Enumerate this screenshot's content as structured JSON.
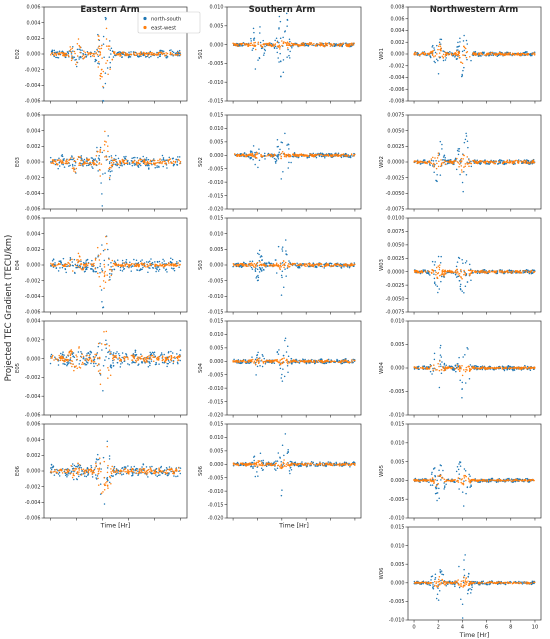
{
  "figure": {
    "ylabel": "Projected TEC Gradient (TECU/km)",
    "xlabel": "Time [Hr]"
  },
  "legend": {
    "entries": [
      "north-south",
      "east-west"
    ]
  },
  "colors": {
    "north_south": "#1f77b4",
    "east_west": "#ff7f0e",
    "axes": "#333333"
  },
  "columns": [
    {
      "title": "Eastern Arm"
    },
    {
      "title": "Southern Arm"
    },
    {
      "title": "Northwestern Arm"
    }
  ],
  "chart_data": [
    {
      "type": "scatter",
      "column": "Eastern Arm",
      "station": "E02",
      "xlim": [
        -0.5,
        10.5
      ],
      "ylim": [
        -0.006,
        0.006
      ],
      "yticks": [
        "0.006",
        "0.004",
        "0.002",
        "0.000",
        "-0.002",
        "-0.004",
        "-0.006"
      ],
      "ytick_values": [
        0.006,
        0.004,
        0.002,
        0.0,
        -0.002,
        -0.004,
        -0.006
      ],
      "x_ticklabels_shown": false,
      "xlabel": "",
      "legend": "top-right",
      "series": [
        {
          "name": "north-south",
          "burst1_amp": 0.0015,
          "burst2_amp": 0.005,
          "baseline_amp": 0.0004
        },
        {
          "name": "east-west",
          "burst1_amp": 0.0018,
          "burst2_amp": 0.0045,
          "baseline_amp": 0.0002
        }
      ]
    },
    {
      "type": "scatter",
      "column": "Eastern Arm",
      "station": "E03",
      "xlim": [
        -0.5,
        10.5
      ],
      "ylim": [
        -0.006,
        0.006
      ],
      "yticks": [
        "0.006",
        "0.004",
        "0.002",
        "0.000",
        "-0.002",
        "-0.004",
        "-0.006"
      ],
      "ytick_values": [
        0.006,
        0.004,
        0.002,
        0.0,
        -0.002,
        -0.004,
        -0.006
      ],
      "x_ticklabels_shown": false,
      "xlabel": "",
      "series": [
        {
          "name": "north-south",
          "burst1_amp": 0.0013,
          "burst2_amp": 0.005,
          "baseline_amp": 0.0007
        },
        {
          "name": "east-west",
          "burst1_amp": 0.0012,
          "burst2_amp": 0.0035,
          "baseline_amp": 0.0003
        }
      ]
    },
    {
      "type": "scatter",
      "column": "Eastern Arm",
      "station": "E04",
      "xlim": [
        -0.5,
        10.5
      ],
      "ylim": [
        -0.006,
        0.006
      ],
      "yticks": [
        "0.006",
        "0.004",
        "0.002",
        "0.000",
        "-0.002",
        "-0.004",
        "-0.006"
      ],
      "ytick_values": [
        0.006,
        0.004,
        0.002,
        0.0,
        -0.002,
        -0.004,
        -0.006
      ],
      "x_ticklabels_shown": false,
      "xlabel": "",
      "series": [
        {
          "name": "north-south",
          "burst1_amp": 0.0012,
          "burst2_amp": 0.0045,
          "baseline_amp": 0.0007
        },
        {
          "name": "east-west",
          "burst1_amp": 0.0014,
          "burst2_amp": 0.0045,
          "baseline_amp": 0.0002
        }
      ]
    },
    {
      "type": "scatter",
      "column": "Eastern Arm",
      "station": "E05",
      "xlim": [
        -0.5,
        10.5
      ],
      "ylim": [
        -0.006,
        0.004
      ],
      "yticks": [
        "0.004",
        "0.002",
        "0.000",
        "-0.002",
        "-0.004",
        "-0.006"
      ],
      "ytick_values": [
        0.004,
        0.002,
        0.0,
        -0.002,
        -0.004,
        -0.006
      ],
      "x_ticklabels_shown": false,
      "xlabel": "",
      "series": [
        {
          "name": "north-south",
          "burst1_amp": 0.0012,
          "burst2_amp": 0.0035,
          "baseline_amp": 0.0007
        },
        {
          "name": "east-west",
          "burst1_amp": 0.0018,
          "burst2_amp": 0.004,
          "baseline_amp": 0.0003
        }
      ]
    },
    {
      "type": "scatter",
      "column": "Eastern Arm",
      "station": "E06",
      "xlim": [
        -0.5,
        10.5
      ],
      "ylim": [
        -0.006,
        0.006
      ],
      "yticks": [
        "0.006",
        "0.004",
        "0.002",
        "0.000",
        "-0.002",
        "-0.004",
        "-0.006"
      ],
      "ytick_values": [
        0.006,
        0.004,
        0.002,
        0.0,
        -0.002,
        -0.004,
        -0.006
      ],
      "x_ticklabels_shown": false,
      "xlabel": "Time [Hr]",
      "series": [
        {
          "name": "north-south",
          "burst1_amp": 0.0013,
          "burst2_amp": 0.0045,
          "baseline_amp": 0.0007
        },
        {
          "name": "east-west",
          "burst1_amp": 0.0012,
          "burst2_amp": 0.004,
          "baseline_amp": 0.0003
        }
      ]
    },
    {
      "type": "scatter",
      "column": "Southern Arm",
      "station": "S01",
      "xlim": [
        -0.5,
        10.5
      ],
      "ylim": [
        -0.015,
        0.01
      ],
      "yticks": [
        "0.010",
        "0.005",
        "0.000",
        "-0.005",
        "-0.010",
        "-0.015"
      ],
      "ytick_values": [
        0.01,
        0.005,
        0.0,
        -0.005,
        -0.01,
        -0.015
      ],
      "x_ticklabels_shown": false,
      "xlabel": "",
      "series": [
        {
          "name": "north-south",
          "burst1_amp": 0.007,
          "burst2_amp": 0.011,
          "baseline_amp": 0.0004
        },
        {
          "name": "east-west",
          "burst1_amp": 0.0012,
          "burst2_amp": 0.0015,
          "baseline_amp": 0.0004
        }
      ]
    },
    {
      "type": "scatter",
      "column": "Southern Arm",
      "station": "S02",
      "xlim": [
        -0.5,
        10.5
      ],
      "ylim": [
        -0.02,
        0.015
      ],
      "yticks": [
        "0.015",
        "0.010",
        "0.005",
        "0.000",
        "-0.005",
        "-0.010",
        "-0.015",
        "-0.020"
      ],
      "ytick_values": [
        0.015,
        0.01,
        0.005,
        0.0,
        -0.005,
        -0.01,
        -0.015,
        -0.02
      ],
      "x_ticklabels_shown": false,
      "xlabel": "",
      "series": [
        {
          "name": "north-south",
          "burst1_amp": 0.005,
          "burst2_amp": 0.012,
          "baseline_amp": 0.0007
        },
        {
          "name": "east-west",
          "burst1_amp": 0.0012,
          "burst2_amp": 0.0015,
          "baseline_amp": 0.0004
        }
      ]
    },
    {
      "type": "scatter",
      "column": "Southern Arm",
      "station": "S03",
      "xlim": [
        -0.5,
        10.5
      ],
      "ylim": [
        -0.015,
        0.015
      ],
      "yticks": [
        "0.015",
        "0.010",
        "0.005",
        "0.000",
        "-0.005",
        "-0.010",
        "-0.015"
      ],
      "ytick_values": [
        0.015,
        0.01,
        0.005,
        0.0,
        -0.005,
        -0.01,
        -0.015
      ],
      "x_ticklabels_shown": false,
      "xlabel": "",
      "series": [
        {
          "name": "north-south",
          "burst1_amp": 0.005,
          "burst2_amp": 0.01,
          "baseline_amp": 0.0007
        },
        {
          "name": "east-west",
          "burst1_amp": 0.0012,
          "burst2_amp": 0.0015,
          "baseline_amp": 0.0004
        }
      ]
    },
    {
      "type": "scatter",
      "column": "Southern Arm",
      "station": "S04",
      "xlim": [
        -0.5,
        10.5
      ],
      "ylim": [
        -0.02,
        0.015
      ],
      "yticks": [
        "0.015",
        "0.010",
        "0.005",
        "0.000",
        "-0.005",
        "-0.010",
        "-0.015",
        "-0.020"
      ],
      "ytick_values": [
        0.015,
        0.01,
        0.005,
        0.0,
        -0.005,
        -0.01,
        -0.015,
        -0.02
      ],
      "x_ticklabels_shown": false,
      "xlabel": "",
      "series": [
        {
          "name": "north-south",
          "burst1_amp": 0.005,
          "burst2_amp": 0.01,
          "baseline_amp": 0.0007
        },
        {
          "name": "east-west",
          "burst1_amp": 0.0012,
          "burst2_amp": 0.0015,
          "baseline_amp": 0.0004
        }
      ]
    },
    {
      "type": "scatter",
      "column": "Southern Arm",
      "station": "S06",
      "xlim": [
        -0.5,
        10.5
      ],
      "ylim": [
        -0.02,
        0.015
      ],
      "yticks": [
        "0.015",
        "0.010",
        "0.005",
        "0.000",
        "-0.005",
        "-0.010",
        "-0.015",
        "-0.020"
      ],
      "ytick_values": [
        0.015,
        0.01,
        0.005,
        0.0,
        -0.005,
        -0.01,
        -0.015,
        -0.02
      ],
      "x_ticklabels_shown": false,
      "xlabel": "Time [Hr]",
      "series": [
        {
          "name": "north-south",
          "burst1_amp": 0.005,
          "burst2_amp": 0.012,
          "baseline_amp": 0.0007
        },
        {
          "name": "east-west",
          "burst1_amp": 0.0012,
          "burst2_amp": 0.0015,
          "baseline_amp": 0.0004
        }
      ]
    },
    {
      "type": "scatter",
      "column": "Northwestern Arm",
      "station": "W01",
      "xlim": [
        -0.5,
        10.5
      ],
      "ylim": [
        -0.008,
        0.008
      ],
      "yticks": [
        "0.008",
        "0.006",
        "0.004",
        "0.002",
        "0.000",
        "-0.002",
        "-0.004",
        "-0.006",
        "-0.008"
      ],
      "ytick_values": [
        0.008,
        0.006,
        0.004,
        0.002,
        0.0,
        -0.002,
        -0.004,
        -0.006,
        -0.008
      ],
      "x_ticklabels_shown": false,
      "xlabel": "",
      "series": [
        {
          "name": "north-south",
          "burst1_amp": 0.003,
          "burst2_amp": 0.004,
          "baseline_amp": 0.0003
        },
        {
          "name": "east-west",
          "burst1_amp": 0.0015,
          "burst2_amp": 0.0015,
          "baseline_amp": 0.0002
        }
      ]
    },
    {
      "type": "scatter",
      "column": "Northwestern Arm",
      "station": "W02",
      "xlim": [
        -0.5,
        10.5
      ],
      "ylim": [
        -0.0075,
        0.0075
      ],
      "yticks": [
        "0.0075",
        "0.0050",
        "0.0025",
        "0.0000",
        "-0.0025",
        "-0.0050",
        "-0.0075"
      ],
      "ytick_values": [
        0.0075,
        0.005,
        0.0025,
        0.0,
        -0.0025,
        -0.005,
        -0.0075
      ],
      "x_ticklabels_shown": false,
      "xlabel": "",
      "series": [
        {
          "name": "north-south",
          "burst1_amp": 0.004,
          "burst2_amp": 0.005,
          "baseline_amp": 0.0003
        },
        {
          "name": "east-west",
          "burst1_amp": 0.0015,
          "burst2_amp": 0.0015,
          "baseline_amp": 0.0002
        }
      ]
    },
    {
      "type": "scatter",
      "column": "Northwestern Arm",
      "station": "W03",
      "xlim": [
        -0.5,
        10.5
      ],
      "ylim": [
        -0.0075,
        0.01
      ],
      "yticks": [
        "0.0100",
        "0.0075",
        "0.0050",
        "0.0025",
        "0.0000",
        "-0.0025",
        "-0.0050",
        "-0.0075"
      ],
      "ytick_values": [
        0.01,
        0.0075,
        0.005,
        0.0025,
        0.0,
        -0.0025,
        -0.005,
        -0.0075
      ],
      "x_ticklabels_shown": false,
      "xlabel": "",
      "series": [
        {
          "name": "north-south",
          "burst1_amp": 0.004,
          "burst2_amp": 0.005,
          "baseline_amp": 0.0003
        },
        {
          "name": "east-west",
          "burst1_amp": 0.0015,
          "burst2_amp": 0.0015,
          "baseline_amp": 0.0002
        }
      ]
    },
    {
      "type": "scatter",
      "column": "Northwestern Arm",
      "station": "W04",
      "xlim": [
        -0.5,
        10.5
      ],
      "ylim": [
        -0.01,
        0.01
      ],
      "yticks": [
        "0.010",
        "0.005",
        "0.000",
        "-0.005",
        "-0.010"
      ],
      "ytick_values": [
        0.01,
        0.005,
        0.0,
        -0.005,
        -0.01
      ],
      "x_ticklabels_shown": false,
      "xlabel": "",
      "series": [
        {
          "name": "north-south",
          "burst1_amp": 0.005,
          "burst2_amp": 0.006,
          "baseline_amp": 0.0004
        },
        {
          "name": "east-west",
          "burst1_amp": 0.0015,
          "burst2_amp": 0.0015,
          "baseline_amp": 0.0002
        }
      ]
    },
    {
      "type": "scatter",
      "column": "Northwestern Arm",
      "station": "W05",
      "xlim": [
        -0.5,
        10.5
      ],
      "ylim": [
        -0.01,
        0.015
      ],
      "yticks": [
        "0.015",
        "0.010",
        "0.005",
        "0.000",
        "-0.005",
        "-0.010"
      ],
      "ytick_values": [
        0.015,
        0.01,
        0.005,
        0.0,
        -0.005,
        -0.01
      ],
      "x_ticklabels_shown": false,
      "xlabel": "",
      "series": [
        {
          "name": "north-south",
          "burst1_amp": 0.006,
          "burst2_amp": 0.008,
          "baseline_amp": 0.0004
        },
        {
          "name": "east-west",
          "burst1_amp": 0.0015,
          "burst2_amp": 0.0015,
          "baseline_amp": 0.0002
        }
      ]
    },
    {
      "type": "scatter",
      "column": "Northwestern Arm",
      "station": "W06",
      "xlim": [
        -0.5,
        10.5
      ],
      "ylim": [
        -0.01,
        0.015
      ],
      "yticks": [
        "0.015",
        "0.010",
        "0.005",
        "0.000",
        "-0.005",
        "-0.010"
      ],
      "ytick_values": [
        0.015,
        0.01,
        0.005,
        0.0,
        -0.005,
        -0.01
      ],
      "x_ticklabels_shown": true,
      "xticks": [
        "0",
        "2",
        "4",
        "6",
        "8",
        "10"
      ],
      "xtick_values": [
        0,
        2,
        4,
        6,
        8,
        10
      ],
      "xlabel": "Time [Hr]",
      "series": [
        {
          "name": "north-south",
          "burst1_amp": 0.005,
          "burst2_amp": 0.008,
          "baseline_amp": 0.0004
        },
        {
          "name": "east-west",
          "burst1_amp": 0.0015,
          "burst2_amp": 0.0015,
          "baseline_amp": 0.0002
        }
      ]
    }
  ]
}
